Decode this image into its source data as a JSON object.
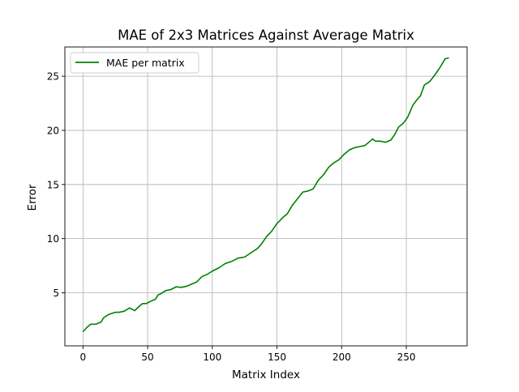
{
  "chart_data": {
    "type": "line",
    "title": "MAE of 2x3 Matrices Against Average Matrix",
    "xlabel": "Matrix Index",
    "ylabel": "Error",
    "xlim": [
      -14,
      297
    ],
    "ylim": [
      0.1,
      27.7
    ],
    "grid": true,
    "legend_position": "upper-left",
    "x_ticks": [
      0,
      50,
      100,
      150,
      200,
      250
    ],
    "y_ticks": [
      5,
      10,
      15,
      20,
      25
    ],
    "x_tick_labels": [
      "0",
      "50",
      "100",
      "150",
      "200",
      "250"
    ],
    "y_tick_labels": [
      "5",
      "10",
      "15",
      "20",
      "25"
    ],
    "series": [
      {
        "name": "MAE per matrix",
        "color": "#008000",
        "x": [
          0,
          3,
          6,
          10,
          14,
          16,
          20,
          25,
          28,
          32,
          36,
          40,
          43,
          46,
          49,
          52,
          56,
          58,
          60,
          64,
          68,
          72,
          76,
          80,
          84,
          88,
          92,
          96,
          100,
          105,
          110,
          115,
          120,
          125,
          130,
          135,
          138,
          142,
          146,
          150,
          155,
          158,
          162,
          166,
          170,
          174,
          178,
          182,
          186,
          190,
          194,
          198,
          202,
          206,
          210,
          214,
          218,
          222,
          224,
          226,
          230,
          234,
          238,
          241,
          244,
          248,
          251,
          255,
          258,
          261,
          264,
          268,
          272,
          276,
          280,
          283
        ],
        "y": [
          1.4,
          1.8,
          2.1,
          2.1,
          2.3,
          2.7,
          3.0,
          3.2,
          3.2,
          3.3,
          3.6,
          3.35,
          3.7,
          4.0,
          4.0,
          4.2,
          4.4,
          4.8,
          4.9,
          5.2,
          5.3,
          5.55,
          5.5,
          5.6,
          5.8,
          6.0,
          6.5,
          6.7,
          7.0,
          7.3,
          7.7,
          7.9,
          8.2,
          8.3,
          8.7,
          9.1,
          9.5,
          10.2,
          10.7,
          11.4,
          12.0,
          12.3,
          13.1,
          13.7,
          14.3,
          14.4,
          14.6,
          15.4,
          15.9,
          16.6,
          17.0,
          17.3,
          17.8,
          18.2,
          18.4,
          18.5,
          18.6,
          19.0,
          19.2,
          19.0,
          19.0,
          18.9,
          19.1,
          19.6,
          20.3,
          20.7,
          21.2,
          22.3,
          22.8,
          23.2,
          24.2,
          24.5,
          25.1,
          25.8,
          26.6,
          26.7
        ]
      }
    ]
  }
}
